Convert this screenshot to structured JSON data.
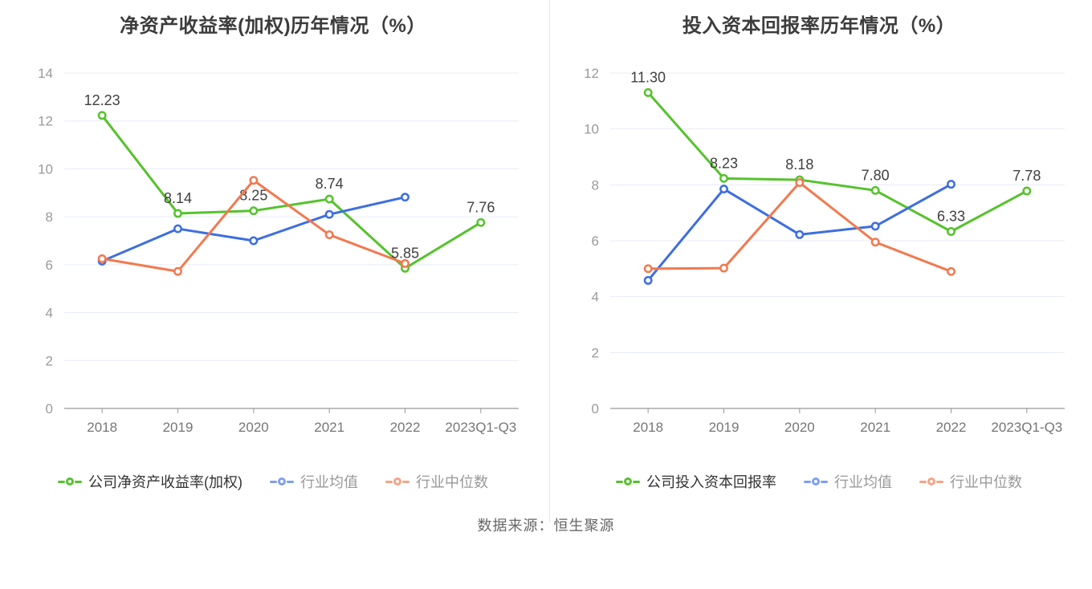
{
  "page": {
    "source_text": "数据来源：恒生聚源"
  },
  "chart_data": [
    {
      "type": "line",
      "title": "净资产收益率(加权)历年情况（%）",
      "categories": [
        "2018",
        "2019",
        "2020",
        "2021",
        "2022",
        "2023Q1-Q3"
      ],
      "ylim": [
        0,
        14
      ],
      "yticks": [
        0,
        2,
        4,
        6,
        8,
        10,
        12,
        14
      ],
      "grid": true,
      "legend_position": "bottom",
      "series": [
        {
          "name": "公司净资产收益率(加权)",
          "values": [
            12.23,
            8.14,
            8.25,
            8.74,
            5.85,
            7.76
          ],
          "labels": [
            "12.23",
            "8.14",
            "8.25",
            "8.74",
            "5.85",
            "7.76"
          ],
          "show_labels": true,
          "color": "#56c22d",
          "legend_color": "#56c22d"
        },
        {
          "name": "行业均值",
          "values": [
            6.15,
            7.5,
            7.0,
            8.1,
            8.82,
            null
          ],
          "show_labels": false,
          "color": "#3d6ee0",
          "legend_color": "#7e9ff0"
        },
        {
          "name": "行业中位数",
          "values": [
            6.25,
            5.72,
            9.52,
            7.25,
            6.05,
            null
          ],
          "show_labels": false,
          "color": "#f2794f",
          "legend_color": "#f8a284"
        }
      ]
    },
    {
      "type": "line",
      "title": "投入资本回报率历年情况（%）",
      "categories": [
        "2018",
        "2019",
        "2020",
        "2021",
        "2022",
        "2023Q1-Q3"
      ],
      "ylim": [
        0,
        12
      ],
      "yticks": [
        0,
        2,
        4,
        6,
        8,
        10,
        12
      ],
      "grid": true,
      "legend_position": "bottom",
      "series": [
        {
          "name": "公司投入资本回报率",
          "values": [
            11.3,
            8.23,
            8.18,
            7.8,
            6.33,
            7.78
          ],
          "labels": [
            "11.30",
            "8.23",
            "8.18",
            "7.80",
            "6.33",
            "7.78"
          ],
          "show_labels": true,
          "color": "#56c22d",
          "legend_color": "#56c22d"
        },
        {
          "name": "行业均值",
          "values": [
            4.58,
            7.85,
            6.22,
            6.52,
            8.02,
            null
          ],
          "show_labels": false,
          "color": "#3d6ee0",
          "legend_color": "#7e9ff0"
        },
        {
          "name": "行业中位数",
          "values": [
            5.0,
            5.02,
            8.08,
            5.95,
            4.9,
            null
          ],
          "show_labels": false,
          "color": "#f2794f",
          "legend_color": "#f8a284"
        }
      ]
    }
  ]
}
